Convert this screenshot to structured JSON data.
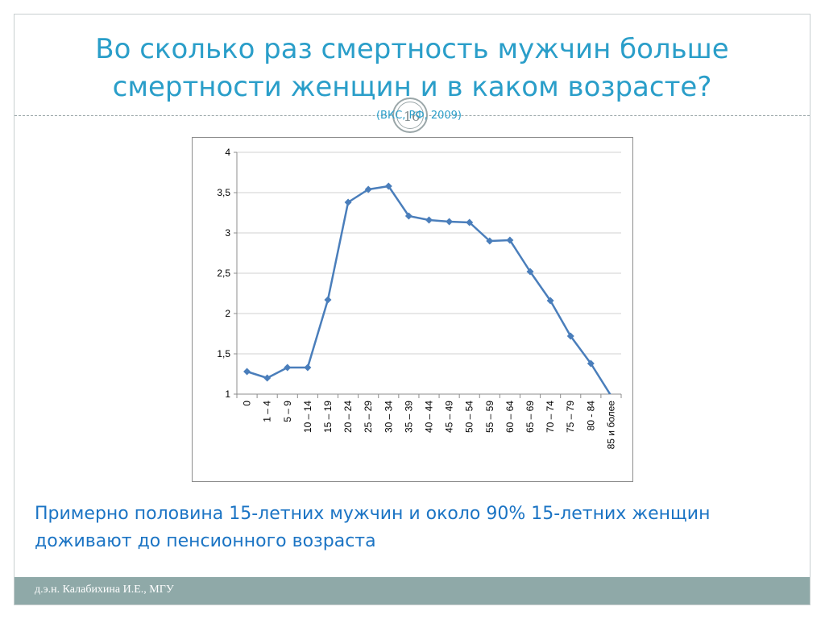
{
  "slide": {
    "title": "Во сколько раз смертность мужчин больше смертности женщин и в каком возрасте?",
    "source": "(ВКС, РФ, 2009)",
    "page_number": "16",
    "caption": "Примерно половина 15-летних мужчин и около 90% 15-летних женщин доживают до пенсионного возраста",
    "footer": "д.э.н. Калабихина И.Е., МГУ"
  },
  "colors": {
    "title": "#2a9ec9",
    "caption": "#1b74c4",
    "line": "#4a7ebb",
    "grid": "#d0d0d0",
    "footer_bg": "#8fa9a8"
  },
  "chart_data": {
    "type": "line",
    "title": "",
    "xlabel": "",
    "ylabel": "",
    "categories": [
      "0",
      "1 – 4",
      "5 – 9",
      "10 – 14",
      "15 – 19",
      "20 – 24",
      "25 – 29",
      "30 – 34",
      "35 – 39",
      "40 – 44",
      "45 – 49",
      "50 – 54",
      "55 – 59",
      "60 – 64",
      "65 – 69",
      "70 – 74",
      "75 – 79",
      "80 - 84",
      "85 и более"
    ],
    "values": [
      1.28,
      1.2,
      1.33,
      1.33,
      2.17,
      3.38,
      3.54,
      3.58,
      3.21,
      3.16,
      3.14,
      3.13,
      2.9,
      2.91,
      2.52,
      2.16,
      1.72,
      1.38,
      0.98
    ],
    "ylim": [
      1,
      4
    ],
    "yticks": [
      "1",
      "1,5",
      "2",
      "2,5",
      "3",
      "3,5",
      "4"
    ],
    "grid": true,
    "legend": "none"
  }
}
